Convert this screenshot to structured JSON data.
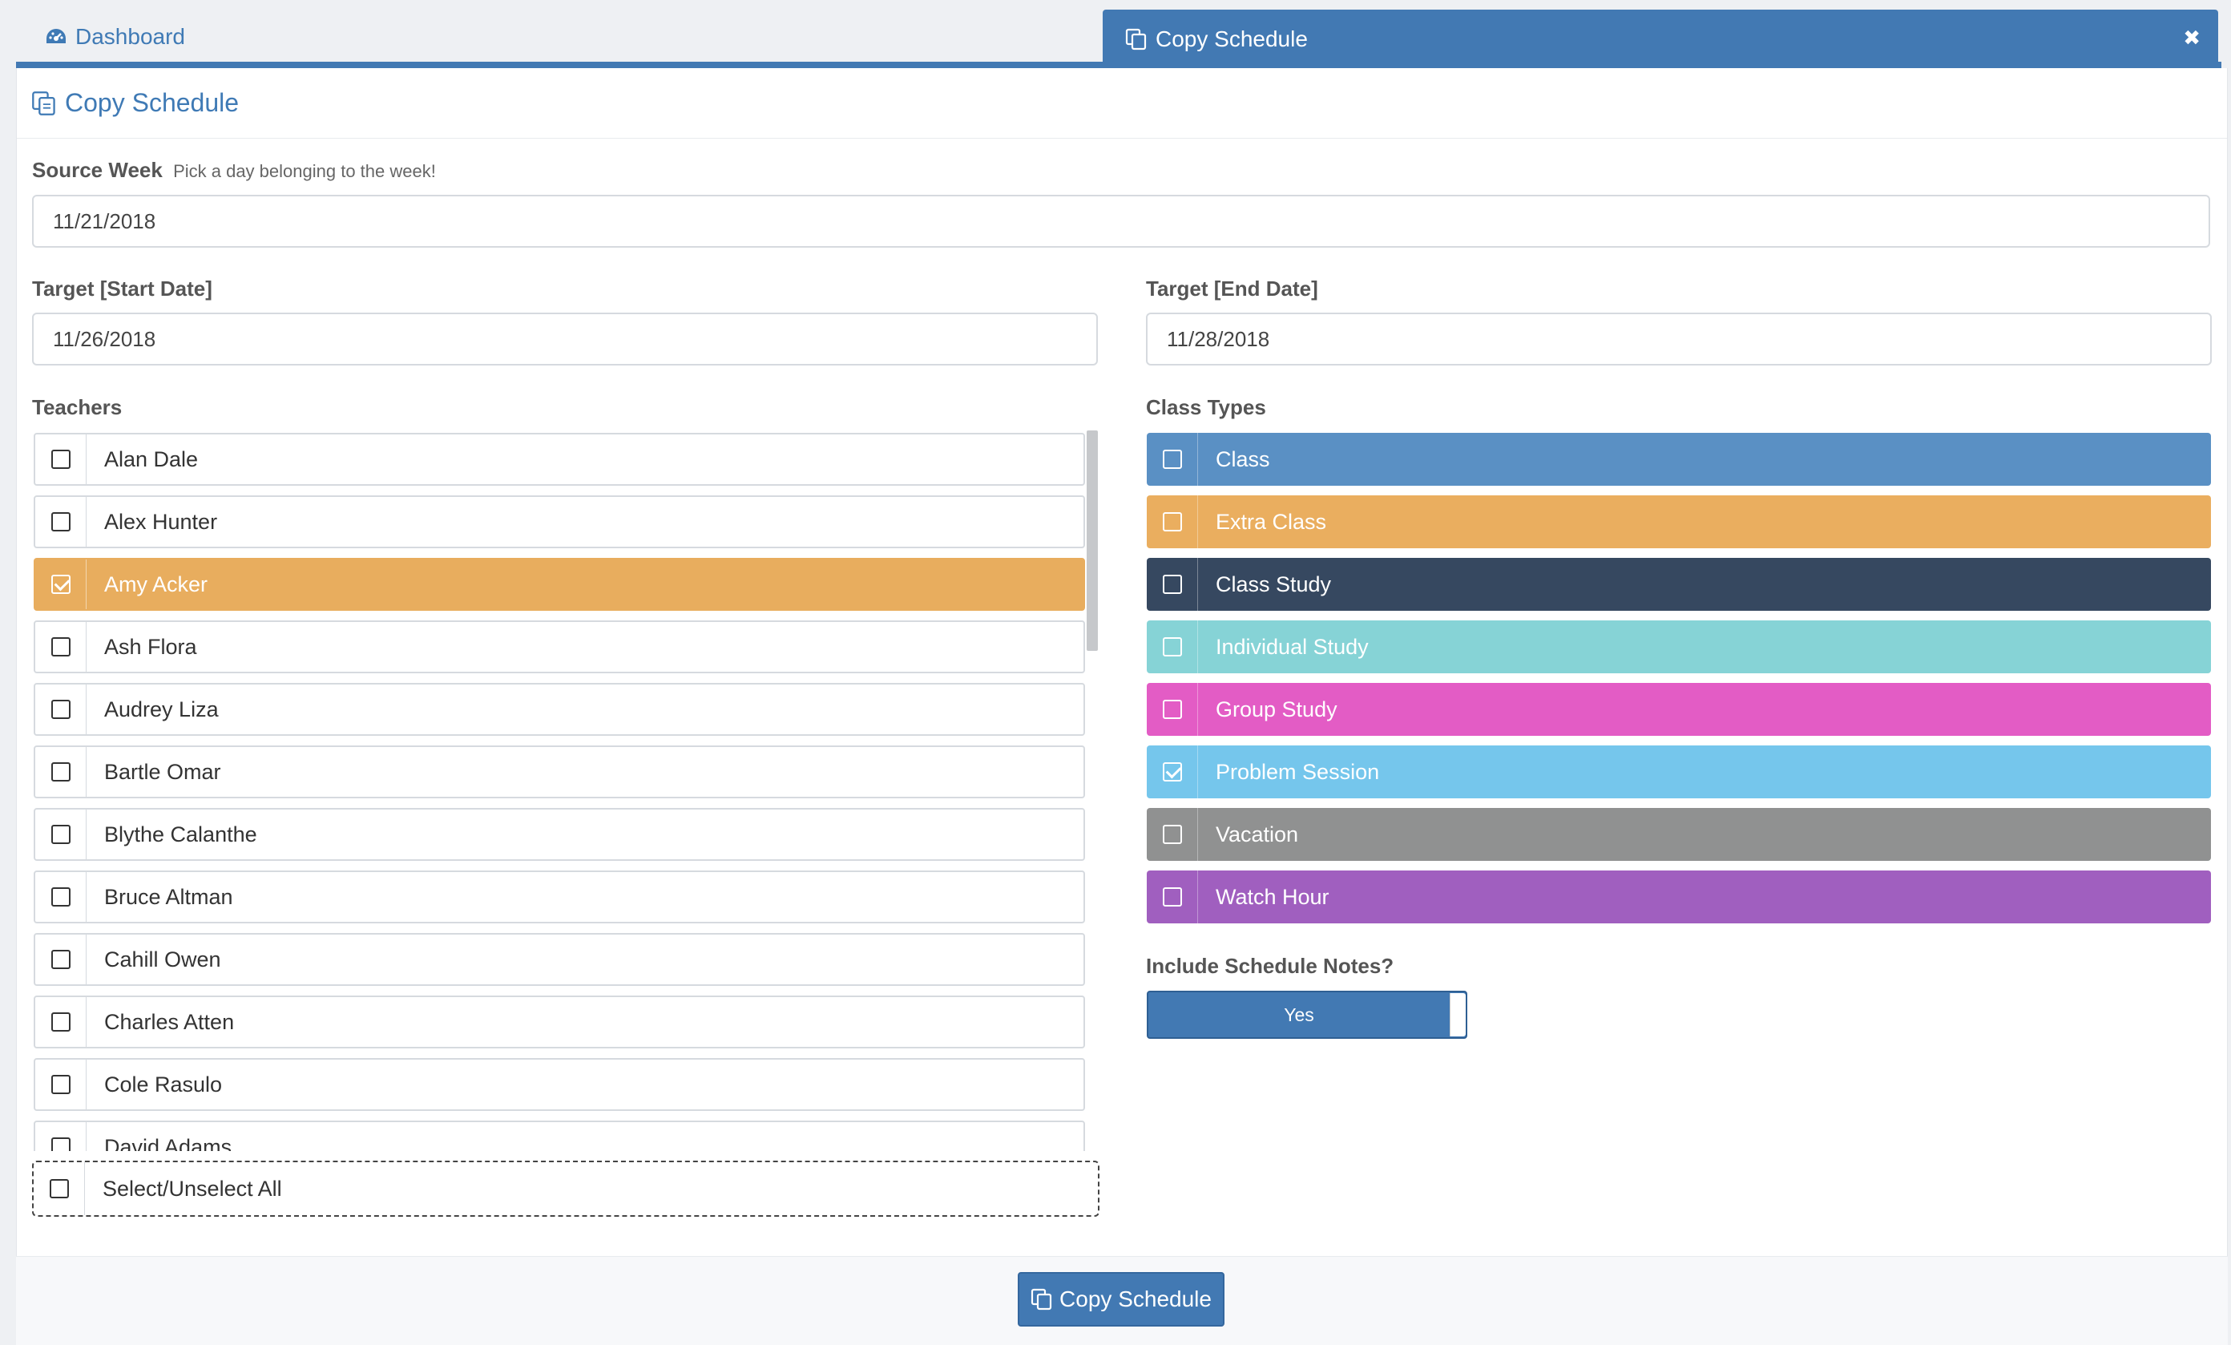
{
  "tabs": {
    "dashboard_label": "Dashboard",
    "active_label": "Copy Schedule",
    "close_symbol": "✖"
  },
  "panel": {
    "title": "Copy Schedule"
  },
  "source_week": {
    "label": "Source Week",
    "hint": "Pick a day belonging to the week!",
    "value": "11/21/2018"
  },
  "target_start": {
    "label": "Target [Start Date]",
    "value": "11/26/2018"
  },
  "target_end": {
    "label": "Target [End Date]",
    "value": "11/28/2018"
  },
  "teachers": {
    "label": "Teachers",
    "items": [
      {
        "name": "Alan Dale",
        "checked": false
      },
      {
        "name": "Alex Hunter",
        "checked": false
      },
      {
        "name": "Amy Acker",
        "checked": true
      },
      {
        "name": "Ash Flora",
        "checked": false
      },
      {
        "name": "Audrey Liza",
        "checked": false
      },
      {
        "name": "Bartle Omar",
        "checked": false
      },
      {
        "name": "Blythe Calanthe",
        "checked": false
      },
      {
        "name": "Bruce Altman",
        "checked": false
      },
      {
        "name": "Cahill Owen",
        "checked": false
      },
      {
        "name": "Charles Atten",
        "checked": false
      },
      {
        "name": "Cole Rasulo",
        "checked": false
      },
      {
        "name": "David Adams",
        "checked": false
      }
    ],
    "select_all_label": "Select/Unselect All"
  },
  "class_types": {
    "label": "Class Types",
    "items": [
      {
        "name": "Class",
        "color": "#5a90c4",
        "checked": false
      },
      {
        "name": "Extra Class",
        "color": "#eaae5f",
        "checked": false
      },
      {
        "name": "Class Study",
        "color": "#364860",
        "checked": false
      },
      {
        "name": "Individual Study",
        "color": "#86d3d6",
        "checked": false
      },
      {
        "name": "Group Study",
        "color": "#e35cc5",
        "checked": false
      },
      {
        "name": "Problem Session",
        "color": "#75c6ec",
        "checked": true
      },
      {
        "name": "Vacation",
        "color": "#909191",
        "checked": false
      },
      {
        "name": "Watch Hour",
        "color": "#a05fbf",
        "checked": false
      }
    ]
  },
  "schedule_notes": {
    "label": "Include Schedule Notes?",
    "toggle_value": "Yes"
  },
  "footer": {
    "button_label": "Copy Schedule"
  },
  "colors": {
    "accent": "#4279b3",
    "selected_teacher": "#e8ad5e"
  },
  "icons": {
    "dashboard": "dashboard-icon",
    "copy": "copy-icon",
    "close": "close-icon"
  }
}
